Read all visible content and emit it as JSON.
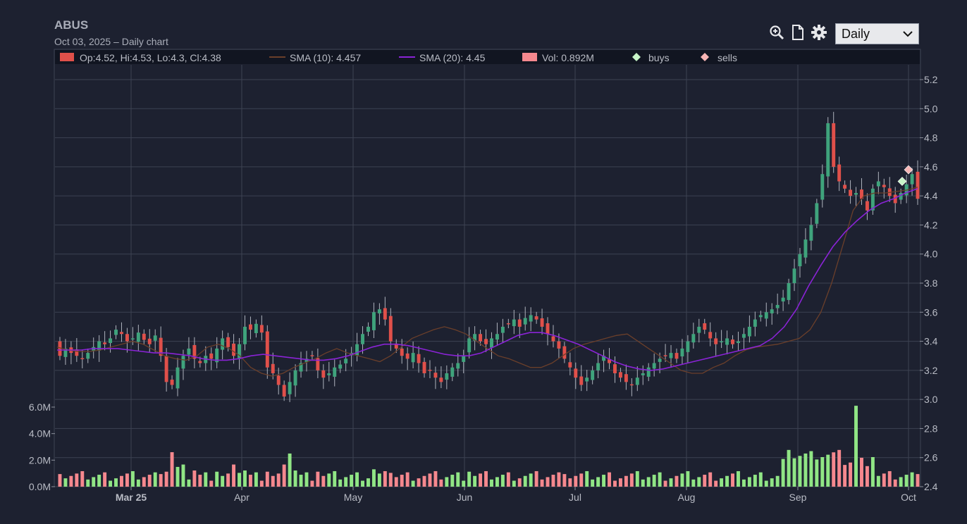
{
  "header": {
    "symbol": "ABUS",
    "subtitle": "Oct 03, 2025 – Daily chart"
  },
  "toolbar": {
    "icons": [
      "zoom-in-icon",
      "document-icon",
      "gear-icon"
    ],
    "period_select": "Daily"
  },
  "legend": {
    "ohlc": "Op:4.52, Hi:4.53, Lo:4.3, Cl:4.38",
    "sma10": "SMA (10): 4.457",
    "sma20": "SMA (20): 4.45",
    "volume": "Vol: 0.892M",
    "buys": "buys",
    "sells": "sells"
  },
  "colors": {
    "up": "#3fa37c",
    "down": "#e0504a",
    "vol_up": "#90e585",
    "vol_down": "#f5888e",
    "sma10": "#6b3f2a",
    "sma20": "#8a23d6",
    "buy": "#c8f5c8",
    "sell": "#f7b5b5",
    "grid": "#3d4252",
    "background": "#1d2130"
  },
  "chart_data": {
    "type": "candlestick",
    "price_axis": {
      "ticks": [
        "5.2",
        "5.0",
        "4.8",
        "4.6",
        "4.4",
        "4.2",
        "4.0",
        "3.8",
        "3.6",
        "3.4",
        "3.2",
        "3.0",
        "2.8",
        "2.6",
        "2.4"
      ],
      "range": [
        2.4,
        5.3
      ]
    },
    "volume_axis": {
      "ticks": [
        "6.0M",
        "4.0M",
        "2.0M",
        "0.0M"
      ],
      "range": [
        0,
        6.0
      ]
    },
    "x_ticks": [
      "Mar 25",
      "Apr",
      "May",
      "Jun",
      "Jul",
      "Aug",
      "Sep",
      "Oct"
    ],
    "closes": [
      3.3,
      3.35,
      3.32,
      3.3,
      3.28,
      3.32,
      3.36,
      3.4,
      3.38,
      3.42,
      3.48,
      3.45,
      3.4,
      3.42,
      3.46,
      3.41,
      3.38,
      3.44,
      3.3,
      3.12,
      3.1,
      3.22,
      3.3,
      3.35,
      3.28,
      3.25,
      3.3,
      3.28,
      3.35,
      3.42,
      3.36,
      3.3,
      3.38,
      3.5,
      3.48,
      3.52,
      3.46,
      3.22,
      3.18,
      3.1,
      3.02,
      3.12,
      3.2,
      3.25,
      3.28,
      3.3,
      3.2,
      3.15,
      3.18,
      3.22,
      3.24,
      3.28,
      3.32,
      3.38,
      3.45,
      3.5,
      3.6,
      3.62,
      3.55,
      3.4,
      3.35,
      3.3,
      3.28,
      3.32,
      3.25,
      3.18,
      3.2,
      3.15,
      3.12,
      3.18,
      3.22,
      3.25,
      3.3,
      3.42,
      3.45,
      3.4,
      3.38,
      3.42,
      3.45,
      3.5,
      3.52,
      3.55,
      3.5,
      3.56,
      3.58,
      3.55,
      3.5,
      3.45,
      3.4,
      3.35,
      3.28,
      3.22,
      3.15,
      3.1,
      3.15,
      3.2,
      3.25,
      3.3,
      3.25,
      3.18,
      3.15,
      3.12,
      3.1,
      3.15,
      3.18,
      3.22,
      3.25,
      3.28,
      3.3,
      3.32,
      3.28,
      3.35,
      3.4,
      3.45,
      3.5,
      3.48,
      3.42,
      3.38,
      3.4,
      3.42,
      3.38,
      3.4,
      3.45,
      3.5,
      3.55,
      3.58,
      3.6,
      3.62,
      3.65,
      3.7,
      3.8,
      3.9,
      4.0,
      4.1,
      4.2,
      4.35,
      4.55,
      4.9,
      4.6,
      4.5,
      4.45,
      4.4,
      4.42,
      4.38,
      4.3,
      4.45,
      4.5,
      4.46,
      4.4,
      4.35,
      4.42,
      4.48,
      4.55,
      4.38
    ],
    "sma10": [
      3.36,
      3.34,
      3.33,
      3.33,
      3.34,
      3.36,
      3.38,
      3.4,
      3.38,
      3.34,
      3.3,
      3.28,
      3.27,
      3.3,
      3.36,
      3.38,
      3.35,
      3.3,
      3.22,
      3.18,
      3.16,
      3.18,
      3.22,
      3.25,
      3.28,
      3.32,
      3.35,
      3.32,
      3.3,
      3.28,
      3.26,
      3.3,
      3.36,
      3.42,
      3.45,
      3.48,
      3.5,
      3.48,
      3.45,
      3.4,
      3.35,
      3.3,
      3.28,
      3.25,
      3.22,
      3.22,
      3.25,
      3.3,
      3.35,
      3.38,
      3.4,
      3.42,
      3.44,
      3.45,
      3.4,
      3.35,
      3.3,
      3.25,
      3.2,
      3.18,
      3.18,
      3.22,
      3.25,
      3.3,
      3.34,
      3.36,
      3.37,
      3.38,
      3.4,
      3.42,
      3.48,
      3.6,
      3.8,
      4.05,
      4.3,
      4.4,
      4.42,
      4.42,
      4.43,
      4.44,
      4.46
    ],
    "sma20": [
      3.34,
      3.34,
      3.34,
      3.35,
      3.35,
      3.35,
      3.34,
      3.33,
      3.32,
      3.32,
      3.31,
      3.3,
      3.28,
      3.27,
      3.27,
      3.28,
      3.3,
      3.31,
      3.3,
      3.29,
      3.28,
      3.27,
      3.27,
      3.28,
      3.3,
      3.33,
      3.36,
      3.38,
      3.38,
      3.37,
      3.35,
      3.33,
      3.31,
      3.3,
      3.3,
      3.32,
      3.36,
      3.4,
      3.44,
      3.46,
      3.46,
      3.44,
      3.41,
      3.38,
      3.34,
      3.3,
      3.26,
      3.23,
      3.21,
      3.2,
      3.21,
      3.23,
      3.25,
      3.27,
      3.29,
      3.31,
      3.33,
      3.35,
      3.37,
      3.42,
      3.5,
      3.62,
      3.78,
      3.92,
      4.05,
      4.15,
      4.23,
      4.3,
      4.35,
      4.38,
      4.42,
      4.45
    ],
    "markers": {
      "buys": [
        4.5
      ],
      "sells": [
        4.58
      ]
    }
  }
}
